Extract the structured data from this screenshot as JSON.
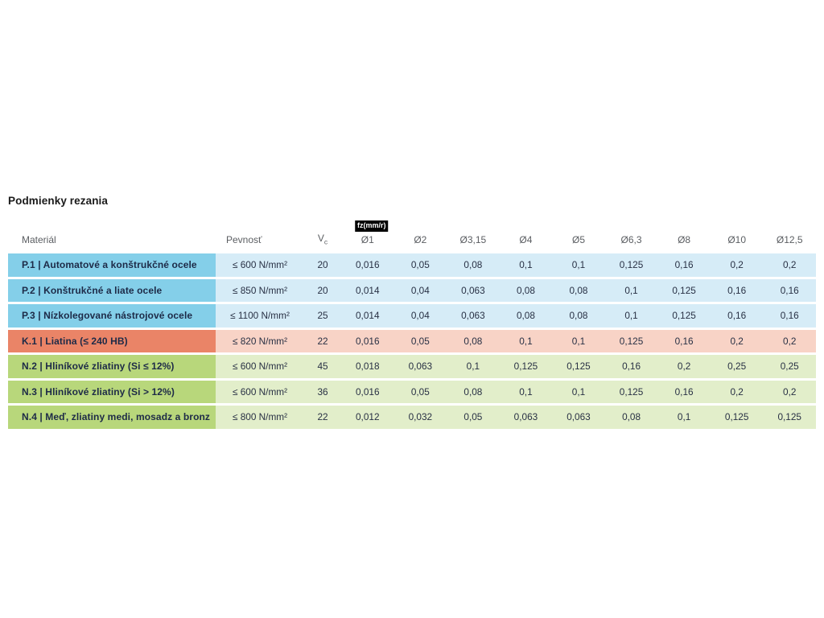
{
  "title": "Podmienky rezania",
  "table": {
    "headers": {
      "material": "Materiál",
      "strength": "Pevnosť",
      "vc_main": "V",
      "vc_sub": "c",
      "fz_badge": "fz(mm/r)",
      "diameters": [
        "Ø1",
        "Ø2",
        "Ø3,15",
        "Ø4",
        "Ø5",
        "Ø6,3",
        "Ø8",
        "Ø10",
        "Ø12,5"
      ]
    },
    "colors": {
      "steel": {
        "label": "#84cfe9",
        "cells": "#d6ecf7"
      },
      "cast_iron": {
        "label": "#ea8467",
        "cells": "#f8d3c6"
      },
      "nonferrous": {
        "label": "#b8d77b",
        "cells": "#e2eeca"
      }
    },
    "rows": [
      {
        "group": "steel",
        "material": "P.1 | Automatové a konštrukčné ocele",
        "strength": "≤ 600 N/mm²",
        "vc": "20",
        "values": [
          "0,016",
          "0,05",
          "0,08",
          "0,1",
          "0,1",
          "0,125",
          "0,16",
          "0,2",
          "0,2"
        ]
      },
      {
        "group": "steel",
        "material": "P.2 | Konštrukčné a liate ocele",
        "strength": "≤ 850 N/mm²",
        "vc": "20",
        "values": [
          "0,014",
          "0,04",
          "0,063",
          "0,08",
          "0,08",
          "0,1",
          "0,125",
          "0,16",
          "0,16"
        ]
      },
      {
        "group": "steel",
        "material": "P.3 | Nízkolegované nástrojové ocele",
        "strength": "≤ 1100 N/mm²",
        "vc": "25",
        "values": [
          "0,014",
          "0,04",
          "0,063",
          "0,08",
          "0,08",
          "0,1",
          "0,125",
          "0,16",
          "0,16"
        ]
      },
      {
        "group": "cast_iron",
        "material": "K.1 | Liatina (≤ 240 HB)",
        "strength": "≤ 820 N/mm²",
        "vc": "22",
        "values": [
          "0,016",
          "0,05",
          "0,08",
          "0,1",
          "0,1",
          "0,125",
          "0,16",
          "0,2",
          "0,2"
        ]
      },
      {
        "group": "nonferrous",
        "material": "N.2 | Hliníkové zliatiny (Si ≤ 12%)",
        "strength": "≤ 600 N/mm²",
        "vc": "45",
        "values": [
          "0,018",
          "0,063",
          "0,1",
          "0,125",
          "0,125",
          "0,16",
          "0,2",
          "0,25",
          "0,25"
        ]
      },
      {
        "group": "nonferrous",
        "material": "N.3 | Hliníkové zliatiny (Si > 12%)",
        "strength": "≤ 600 N/mm²",
        "vc": "36",
        "values": [
          "0,016",
          "0,05",
          "0,08",
          "0,1",
          "0,1",
          "0,125",
          "0,16",
          "0,2",
          "0,2"
        ]
      },
      {
        "group": "nonferrous",
        "material": "N.4 | Meď, zliatiny medi, mosadz a bronz",
        "strength": "≤ 800 N/mm²",
        "vc": "22",
        "values": [
          "0,012",
          "0,032",
          "0,05",
          "0,063",
          "0,063",
          "0,08",
          "0,1",
          "0,125",
          "0,125"
        ]
      }
    ]
  }
}
